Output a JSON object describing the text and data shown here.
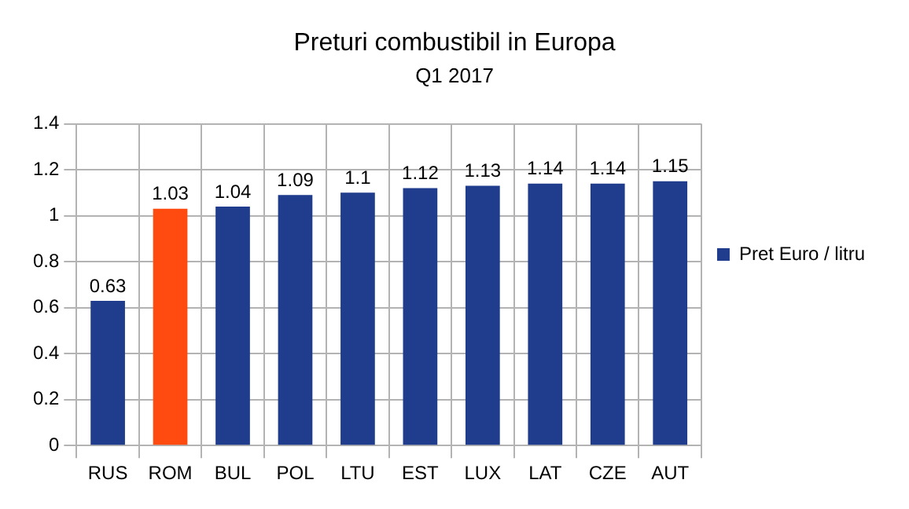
{
  "chart_data": {
    "type": "bar",
    "title": "Preturi combustibil in Europa",
    "subtitle": "Q1 2017",
    "categories": [
      "RUS",
      "ROM",
      "BUL",
      "POL",
      "LTU",
      "EST",
      "LUX",
      "LAT",
      "CZE",
      "AUT"
    ],
    "series": [
      {
        "name": "Pret Euro / litru",
        "color": "#1f3d8c",
        "values": [
          0.63,
          1.03,
          1.04,
          1.09,
          1.1,
          1.12,
          1.13,
          1.14,
          1.14,
          1.15
        ],
        "colors": [
          "#1f3d8c",
          "#ff4a10",
          "#1f3d8c",
          "#1f3d8c",
          "#1f3d8c",
          "#1f3d8c",
          "#1f3d8c",
          "#1f3d8c",
          "#1f3d8c",
          "#1f3d8c"
        ]
      }
    ],
    "ylim": [
      0,
      1.4
    ],
    "yticks": [
      0,
      0.2,
      0.4,
      0.6,
      0.8,
      1,
      1.2,
      1.4
    ],
    "grid": true,
    "legend": "right",
    "data_labels": true
  }
}
